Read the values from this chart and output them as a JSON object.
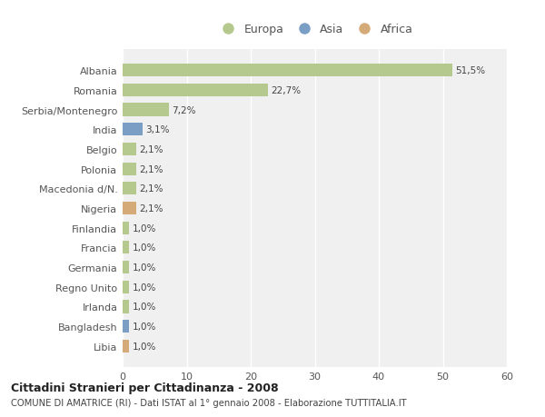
{
  "countries": [
    "Albania",
    "Romania",
    "Serbia/Montenegro",
    "India",
    "Belgio",
    "Polonia",
    "Macedonia d/N.",
    "Nigeria",
    "Finlandia",
    "Francia",
    "Germania",
    "Regno Unito",
    "Irlanda",
    "Bangladesh",
    "Libia"
  ],
  "values": [
    51.5,
    22.7,
    7.2,
    3.1,
    2.1,
    2.1,
    2.1,
    2.1,
    1.0,
    1.0,
    1.0,
    1.0,
    1.0,
    1.0,
    1.0
  ],
  "labels": [
    "51,5%",
    "22,7%",
    "7,2%",
    "3,1%",
    "2,1%",
    "2,1%",
    "2,1%",
    "2,1%",
    "1,0%",
    "1,0%",
    "1,0%",
    "1,0%",
    "1,0%",
    "1,0%",
    "1,0%"
  ],
  "continents": [
    "Europa",
    "Europa",
    "Europa",
    "Asia",
    "Europa",
    "Europa",
    "Europa",
    "Africa",
    "Europa",
    "Europa",
    "Europa",
    "Europa",
    "Europa",
    "Asia",
    "Africa"
  ],
  "colors": {
    "Europa": "#b5c98e",
    "Asia": "#7b9ec5",
    "Africa": "#d4aa78"
  },
  "title": "Cittadini Stranieri per Cittadinanza - 2008",
  "subtitle": "COMUNE DI AMATRICE (RI) - Dati ISTAT al 1° gennaio 2008 - Elaborazione TUTTITALIA.IT",
  "xlabel_range": [
    0,
    60
  ],
  "xticks": [
    0,
    10,
    20,
    30,
    40,
    50,
    60
  ],
  "background_color": "#ffffff",
  "plot_background": "#f0f0f0",
  "grid_color": "#ffffff"
}
